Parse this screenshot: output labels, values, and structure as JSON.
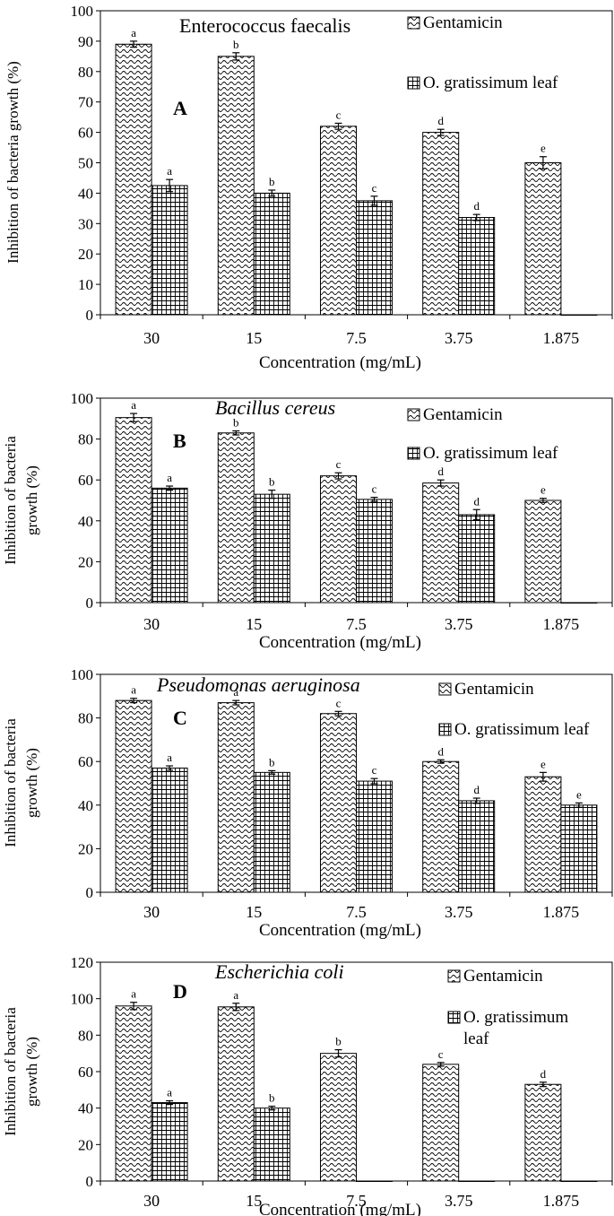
{
  "colors": {
    "gentamicin_fill": "#ffffff",
    "leaf_fill": "#ffffff",
    "stroke": "#000000"
  },
  "chart_data": [
    {
      "type": "bar",
      "panel_label": "A",
      "title": "Enterococcus faecalis",
      "title_italic": false,
      "xlabel": "Concentration (mg/mL)",
      "ylabel_lines": [
        "Inhibition of bacteria growth (%)"
      ],
      "ylim": [
        0,
        100
      ],
      "yticks": [
        0,
        10,
        20,
        30,
        40,
        50,
        60,
        70,
        80,
        90,
        100
      ],
      "categories": [
        "30",
        "15",
        "7.5",
        "3.75",
        "1.875"
      ],
      "series": [
        {
          "name": "Gentamicin",
          "pattern": "wave",
          "legend_lines": [
            "Gentamicin"
          ],
          "values": [
            89,
            85,
            62,
            60,
            50
          ],
          "errors": [
            1,
            1.2,
            1,
            1,
            2
          ],
          "letters": [
            "a",
            "b",
            "c",
            "d",
            "e"
          ]
        },
        {
          "name": "O. gratissimum leaf",
          "pattern": "grid",
          "legend_lines": [
            "O. gratissimum leaf"
          ],
          "values": [
            42.5,
            40,
            37.5,
            32,
            0
          ],
          "errors": [
            2,
            1,
            1.5,
            1,
            0
          ],
          "letters": [
            "a",
            "b",
            "c",
            "d",
            ""
          ]
        }
      ]
    },
    {
      "type": "bar",
      "panel_label": "B",
      "title": "Bacillus cereus",
      "title_italic": true,
      "xlabel": "Concentration (mg/mL)",
      "ylabel_lines": [
        "Inhibition of bacteria",
        "growth (%)"
      ],
      "ylim": [
        0,
        100
      ],
      "yticks": [
        0,
        20,
        40,
        60,
        80,
        100
      ],
      "categories": [
        "30",
        "15",
        "7.5",
        "3.75",
        "1.875"
      ],
      "series": [
        {
          "name": "Gentamicin",
          "pattern": "wave",
          "legend_lines": [
            "Gentamicin"
          ],
          "values": [
            90.5,
            83,
            62,
            58.5,
            50
          ],
          "errors": [
            2,
            1,
            1.5,
            1.5,
            1
          ],
          "letters": [
            "a",
            "b",
            "c",
            "d",
            "e"
          ]
        },
        {
          "name": "O. gratissimum leaf",
          "pattern": "grid",
          "legend_lines": [
            "O. gratissimum leaf"
          ],
          "values": [
            56,
            53,
            50.5,
            43,
            0
          ],
          "errors": [
            1,
            2,
            1,
            2.5,
            0
          ],
          "letters": [
            "a",
            "b",
            "c",
            "d",
            ""
          ]
        }
      ]
    },
    {
      "type": "bar",
      "panel_label": "C",
      "title": "Pseudomonas aeruginosa",
      "title_italic": true,
      "xlabel": "Concentration (mg/mL)",
      "ylabel_lines": [
        "Inhibition of bacteria",
        "growth (%)"
      ],
      "ylim": [
        0,
        100
      ],
      "yticks": [
        0,
        20,
        40,
        60,
        80,
        100
      ],
      "categories": [
        "30",
        "15",
        "7.5",
        "3.75",
        "1.875"
      ],
      "series": [
        {
          "name": "Gentamicin",
          "pattern": "wave",
          "legend_lines": [
            "Gentamicin"
          ],
          "values": [
            88,
            87,
            82,
            60,
            53
          ],
          "errors": [
            1,
            1,
            1,
            0.8,
            2
          ],
          "letters": [
            "a",
            "a",
            "c",
            "d",
            "e"
          ]
        },
        {
          "name": "O. gratissimum leaf",
          "pattern": "grid",
          "legend_lines": [
            "O. gratissimum leaf"
          ],
          "values": [
            57,
            55,
            51,
            42,
            40
          ],
          "errors": [
            1,
            0.8,
            1.2,
            1.2,
            1
          ],
          "letters": [
            "a",
            "b",
            "c",
            "d",
            "e"
          ]
        }
      ]
    },
    {
      "type": "bar",
      "panel_label": "D",
      "title": "Escherichia coli",
      "title_italic": true,
      "xlabel": "Concentration (mg/mL)",
      "ylabel_lines": [
        "Inhibition of bacteria",
        "growth (%)"
      ],
      "ylim": [
        0,
        120
      ],
      "yticks": [
        0,
        20,
        40,
        60,
        80,
        100,
        120
      ],
      "categories": [
        "30",
        "15",
        "7.5",
        "3.75",
        "1.875"
      ],
      "series": [
        {
          "name": "Gentamicin",
          "pattern": "wave",
          "legend_lines": [
            "Gentamicin"
          ],
          "values": [
            96,
            95.5,
            70,
            64,
            53
          ],
          "errors": [
            2,
            2,
            2,
            1,
            1.2
          ],
          "letters": [
            "a",
            "a",
            "b",
            "c",
            "d"
          ]
        },
        {
          "name": "O. gratissimum leaf",
          "pattern": "grid",
          "legend_lines": [
            "O. gratissimum",
            "leaf"
          ],
          "values": [
            43,
            40,
            0,
            0,
            0
          ],
          "errors": [
            1,
            1,
            0,
            0,
            0
          ],
          "letters": [
            "a",
            "b",
            "",
            "",
            ""
          ]
        }
      ]
    }
  ]
}
